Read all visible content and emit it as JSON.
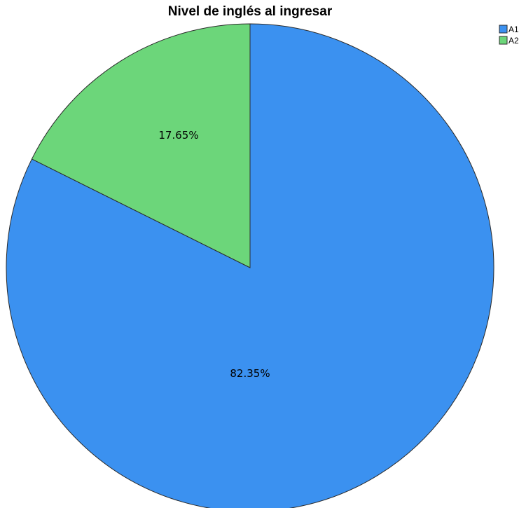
{
  "chart_data": {
    "type": "pie",
    "title": "Nivel de inglés al ingresar",
    "categories": [
      "A1",
      "A2"
    ],
    "values": [
      82.35,
      17.65
    ],
    "labels": [
      "82.35%",
      "17.65%"
    ],
    "colors": [
      "#3b91f0",
      "#6cd67a"
    ],
    "start_angle_deg": 0,
    "direction": "clockwise_from_top_for_A2",
    "legend": {
      "position": "top-right",
      "entries": [
        "A1",
        "A2"
      ]
    }
  }
}
